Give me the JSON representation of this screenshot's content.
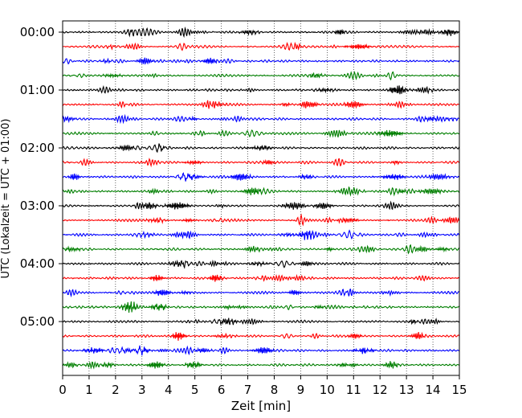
{
  "chart_data": {
    "type": "line",
    "xlabel": "Zeit  [min]",
    "ylabel": "UTC (Lokalzeit = UTC + 01:00)",
    "xlim": [
      0,
      15
    ],
    "x_ticks": [
      "0",
      "1",
      "2",
      "3",
      "4",
      "5",
      "6",
      "7",
      "8",
      "9",
      "10",
      "11",
      "12",
      "13",
      "14",
      "15"
    ],
    "y_ticks": [
      "00:00",
      "01:00",
      "02:00",
      "03:00",
      "04:00",
      "05:00"
    ],
    "grid": "vertical dotted",
    "trace_interval_min": 15,
    "trace_count": 24,
    "colors": [
      "#000000",
      "#ff0000",
      "#0000ff",
      "#007f00"
    ]
  }
}
